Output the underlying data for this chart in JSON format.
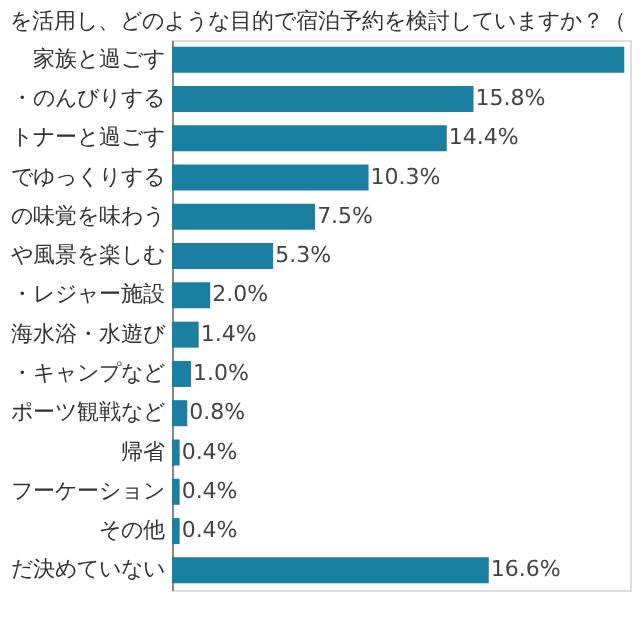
{
  "chart_data": {
    "type": "bar",
    "orientation": "horizontal",
    "title": "を活用し、どのような目的で宿泊予約を検討していますか？（",
    "categories": [
      "家族と過ごす",
      "・のんびりする",
      "トナーと過ごす",
      "でゆっくりする",
      "の味覚を味わう",
      "や風景を楽しむ",
      "・レジャー施設",
      "海水浴・水遊び",
      "・キャンプなど",
      "ポーツ観戦など",
      "帰省",
      "フーケーション",
      "その他",
      "だ決めていない"
    ],
    "values": [
      23.7,
      15.8,
      14.4,
      10.3,
      7.5,
      5.3,
      2.0,
      1.4,
      1.0,
      0.8,
      0.4,
      0.4,
      0.4,
      16.6
    ],
    "value_labels": [
      null,
      "15.8%",
      "14.4%",
      "10.3%",
      "7.5%",
      "5.3%",
      "2.0%",
      "1.4%",
      "1.0%",
      "0.8%",
      "0.4%",
      "0.4%",
      "0.4%",
      "16.6%"
    ],
    "xlim": [
      0,
      24
    ],
    "color": "#1a7fa0"
  }
}
